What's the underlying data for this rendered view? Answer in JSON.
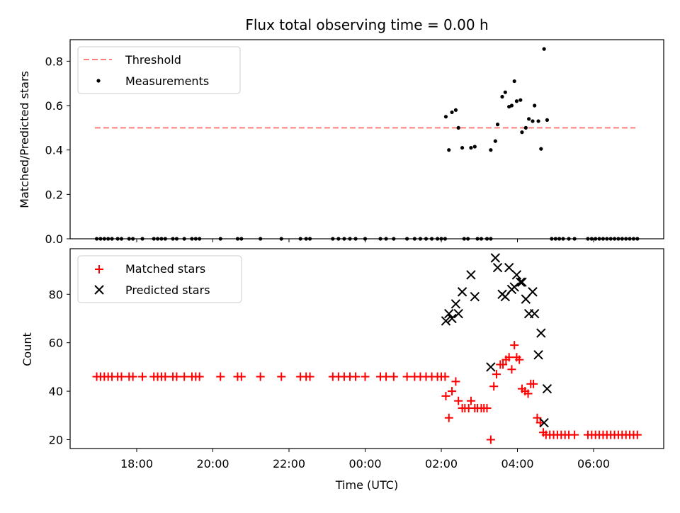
{
  "chart_data": [
    {
      "type": "scatter",
      "title": "Flux total observing time = 0.00 h",
      "xlabel": "",
      "ylabel": "Matched/Predicted stars",
      "ylim": [
        0,
        0.9
      ],
      "yticks": [
        "0.0",
        "0.2",
        "0.4",
        "0.6",
        "0.8"
      ],
      "xticks_hours": [
        18,
        20,
        22,
        24,
        26,
        28,
        30
      ],
      "legend": {
        "placement": "upper-left",
        "entries": [
          "Threshold",
          "Measurements"
        ]
      },
      "colors": {
        "threshold": "#ff7f7f",
        "measurements": "#000000"
      },
      "threshold": {
        "value": 0.5,
        "x_range": [
          16.9,
          31.1
        ]
      },
      "measurements_zero_x": [
        16.95,
        17.05,
        17.15,
        17.25,
        17.35,
        17.5,
        17.6,
        17.8,
        17.9,
        18.15,
        18.45,
        18.55,
        18.65,
        18.75,
        18.95,
        19.05,
        19.25,
        19.45,
        19.55,
        19.65,
        20.2,
        20.65,
        20.75,
        21.25,
        21.8,
        22.3,
        22.45,
        22.55,
        23.15,
        23.3,
        23.45,
        23.6,
        23.75,
        24.0,
        24.4,
        24.55,
        24.75,
        25.1,
        25.3,
        25.45,
        25.6,
        25.75,
        25.9,
        26.0,
        26.1,
        26.6,
        26.7,
        26.95,
        27.05,
        27.2,
        27.3,
        28.9,
        29.0,
        29.1,
        29.2,
        29.35,
        29.5,
        29.85,
        29.95,
        30.05,
        30.15,
        30.25,
        30.35,
        30.45,
        30.55,
        30.65,
        30.75,
        30.85,
        30.95,
        31.05,
        31.15
      ],
      "measurements": [
        {
          "x": 26.12,
          "y": 0.55
        },
        {
          "x": 26.2,
          "y": 0.4
        },
        {
          "x": 26.28,
          "y": 0.57
        },
        {
          "x": 26.38,
          "y": 0.58
        },
        {
          "x": 26.45,
          "y": 0.5
        },
        {
          "x": 26.55,
          "y": 0.41
        },
        {
          "x": 26.78,
          "y": 0.41
        },
        {
          "x": 26.88,
          "y": 0.415
        },
        {
          "x": 27.3,
          "y": 0.4
        },
        {
          "x": 27.42,
          "y": 0.44
        },
        {
          "x": 27.48,
          "y": 0.515
        },
        {
          "x": 27.6,
          "y": 0.64
        },
        {
          "x": 27.68,
          "y": 0.66
        },
        {
          "x": 27.78,
          "y": 0.595
        },
        {
          "x": 27.85,
          "y": 0.6
        },
        {
          "x": 27.92,
          "y": 0.71
        },
        {
          "x": 27.98,
          "y": 0.62
        },
        {
          "x": 28.08,
          "y": 0.625
        },
        {
          "x": 28.12,
          "y": 0.48
        },
        {
          "x": 28.22,
          "y": 0.5
        },
        {
          "x": 28.3,
          "y": 0.54
        },
        {
          "x": 28.4,
          "y": 0.53
        },
        {
          "x": 28.45,
          "y": 0.6
        },
        {
          "x": 28.55,
          "y": 0.53
        },
        {
          "x": 28.62,
          "y": 0.405
        },
        {
          "x": 28.7,
          "y": 0.855
        },
        {
          "x": 28.78,
          "y": 0.535
        }
      ]
    },
    {
      "type": "scatter",
      "title": "",
      "xlabel": "Time (UTC)",
      "ylabel": "Count",
      "ylim": [
        16,
        96
      ],
      "yticks": [
        "20",
        "40",
        "60",
        "80"
      ],
      "xticks": [
        "18:00",
        "20:00",
        "22:00",
        "00:00",
        "02:00",
        "04:00",
        "06:00"
      ],
      "xticks_hours": [
        18,
        20,
        22,
        24,
        26,
        28,
        30
      ],
      "legend": {
        "placement": "upper-left",
        "entries": [
          "Matched stars",
          "Predicted stars"
        ]
      },
      "colors": {
        "matched": "#ff0000",
        "predicted": "#000000"
      },
      "matched_flat_x": [
        16.95,
        17.05,
        17.15,
        17.25,
        17.35,
        17.5,
        17.6,
        17.8,
        17.9,
        18.15,
        18.45,
        18.55,
        18.65,
        18.75,
        18.95,
        19.05,
        19.25,
        19.45,
        19.55,
        19.65,
        20.2,
        20.65,
        20.75,
        21.25,
        21.8,
        22.3,
        22.45,
        22.55,
        23.15,
        23.3,
        23.45,
        23.6,
        23.75,
        24.0,
        24.4,
        24.55,
        24.75,
        25.1,
        25.3,
        25.45,
        25.6,
        25.75,
        25.9,
        26.0,
        26.1
      ],
      "matched_flat_y": 46,
      "matched": [
        {
          "x": 26.12,
          "y": 38
        },
        {
          "x": 26.2,
          "y": 29
        },
        {
          "x": 26.28,
          "y": 40
        },
        {
          "x": 26.38,
          "y": 44
        },
        {
          "x": 26.45,
          "y": 36
        },
        {
          "x": 26.55,
          "y": 33
        },
        {
          "x": 26.62,
          "y": 33
        },
        {
          "x": 26.72,
          "y": 33
        },
        {
          "x": 26.78,
          "y": 36
        },
        {
          "x": 26.88,
          "y": 33
        },
        {
          "x": 26.95,
          "y": 33
        },
        {
          "x": 27.05,
          "y": 33
        },
        {
          "x": 27.12,
          "y": 33
        },
        {
          "x": 27.2,
          "y": 33
        },
        {
          "x": 27.3,
          "y": 20
        },
        {
          "x": 27.38,
          "y": 42
        },
        {
          "x": 27.45,
          "y": 47
        },
        {
          "x": 27.55,
          "y": 51
        },
        {
          "x": 27.62,
          "y": 51
        },
        {
          "x": 27.7,
          "y": 53
        },
        {
          "x": 27.78,
          "y": 54
        },
        {
          "x": 27.85,
          "y": 49
        },
        {
          "x": 27.92,
          "y": 59
        },
        {
          "x": 27.98,
          "y": 54
        },
        {
          "x": 28.05,
          "y": 53
        },
        {
          "x": 28.12,
          "y": 41
        },
        {
          "x": 28.2,
          "y": 40
        },
        {
          "x": 28.28,
          "y": 39
        },
        {
          "x": 28.35,
          "y": 43
        },
        {
          "x": 28.42,
          "y": 43
        },
        {
          "x": 28.52,
          "y": 29
        },
        {
          "x": 28.6,
          "y": 27
        },
        {
          "x": 28.68,
          "y": 23
        }
      ],
      "matched_tail_x": [
        28.75,
        28.85,
        28.95,
        29.05,
        29.15,
        29.25,
        29.35,
        29.5,
        29.85,
        29.95,
        30.05,
        30.15,
        30.25,
        30.35,
        30.45,
        30.55,
        30.65,
        30.75,
        30.85,
        30.95,
        31.05,
        31.15
      ],
      "matched_tail_y": 22,
      "predicted": [
        {
          "x": 26.12,
          "y": 69
        },
        {
          "x": 26.2,
          "y": 72
        },
        {
          "x": 26.28,
          "y": 70
        },
        {
          "x": 26.38,
          "y": 76
        },
        {
          "x": 26.45,
          "y": 72
        },
        {
          "x": 26.55,
          "y": 81
        },
        {
          "x": 26.78,
          "y": 88
        },
        {
          "x": 26.88,
          "y": 79
        },
        {
          "x": 27.3,
          "y": 50
        },
        {
          "x": 27.42,
          "y": 95
        },
        {
          "x": 27.48,
          "y": 91
        },
        {
          "x": 27.6,
          "y": 80
        },
        {
          "x": 27.68,
          "y": 79
        },
        {
          "x": 27.78,
          "y": 91
        },
        {
          "x": 27.85,
          "y": 82
        },
        {
          "x": 27.92,
          "y": 83
        },
        {
          "x": 27.98,
          "y": 88
        },
        {
          "x": 28.08,
          "y": 85
        },
        {
          "x": 28.12,
          "y": 85
        },
        {
          "x": 28.22,
          "y": 78
        },
        {
          "x": 28.3,
          "y": 72
        },
        {
          "x": 28.4,
          "y": 81
        },
        {
          "x": 28.45,
          "y": 72
        },
        {
          "x": 28.55,
          "y": 55
        },
        {
          "x": 28.62,
          "y": 64
        },
        {
          "x": 28.7,
          "y": 27
        },
        {
          "x": 28.78,
          "y": 41
        }
      ]
    }
  ]
}
